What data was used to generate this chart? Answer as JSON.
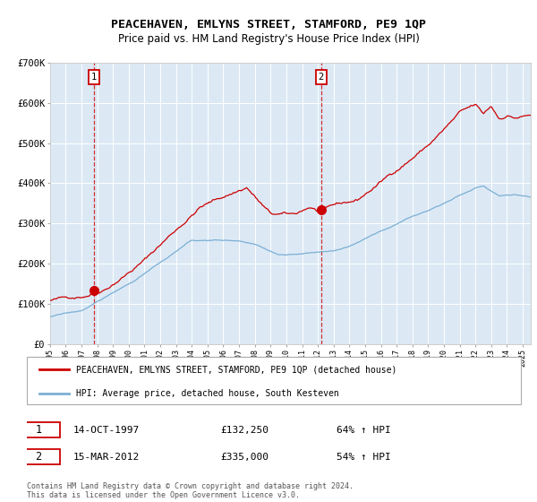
{
  "title": "PEACEHAVEN, EMLYNS STREET, STAMFORD, PE9 1QP",
  "subtitle": "Price paid vs. HM Land Registry's House Price Index (HPI)",
  "plot_bg_color": "#dce9f5",
  "grid_color": "#c8d8e8",
  "white_bg": "#ffffff",
  "red_line_color": "#cc0000",
  "blue_line_color": "#7bafd4",
  "sale1_date_label": "14-OCT-1997",
  "sale1_price": 132250,
  "sale1_pct": "64%",
  "sale2_date_label": "15-MAR-2012",
  "sale2_price": 335000,
  "sale2_pct": "54%",
  "legend_label_red": "PEACEHAVEN, EMLYNS STREET, STAMFORD, PE9 1QP (detached house)",
  "legend_label_blue": "HPI: Average price, detached house, South Kesteven",
  "footer": "Contains HM Land Registry data © Crown copyright and database right 2024.\nThis data is licensed under the Open Government Licence v3.0.",
  "ylim": [
    0,
    700000
  ],
  "yticks": [
    0,
    100000,
    200000,
    300000,
    400000,
    500000,
    600000,
    700000
  ],
  "ytick_labels": [
    "£0",
    "£100K",
    "£200K",
    "£300K",
    "£400K",
    "£500K",
    "£600K",
    "£700K"
  ],
  "sale1_year": 1997.79,
  "sale2_year": 2012.21,
  "xmin": 1995.0,
  "xmax": 2025.5,
  "title_fontsize": 9.5,
  "subtitle_fontsize": 8.5,
  "axis_fontsize": 7.5
}
